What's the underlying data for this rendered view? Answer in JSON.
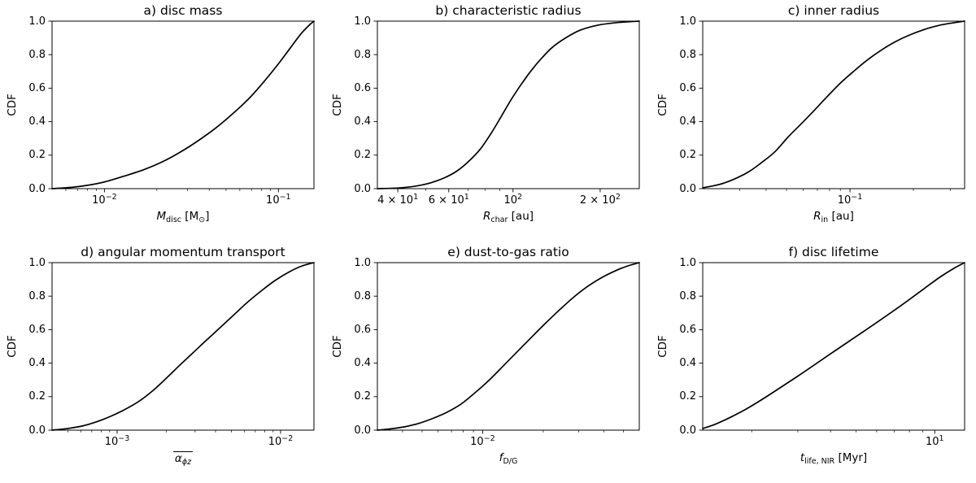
{
  "figure": {
    "bg": "#ffffff",
    "line_color": "#000000",
    "axis_color": "#000000",
    "ylabel": "CDF",
    "yticks": [
      {
        "v": 0.0,
        "label": "0.0"
      },
      {
        "v": 0.2,
        "label": "0.2"
      },
      {
        "v": 0.4,
        "label": "0.4"
      },
      {
        "v": 0.6,
        "label": "0.6"
      },
      {
        "v": 0.8,
        "label": "0.8"
      },
      {
        "v": 1.0,
        "label": "1.0"
      }
    ]
  },
  "chart_data": [
    {
      "id": "a",
      "type": "line",
      "title": "a) disc mass",
      "xscale": "log",
      "xlim": [
        0.005,
        0.16
      ],
      "ylim": [
        0,
        1
      ],
      "xticks": [
        {
          "v": 0.01,
          "pre": "",
          "exp": "−2"
        },
        {
          "v": 0.1,
          "pre": "",
          "exp": "−1"
        }
      ],
      "xlabel_parts": [
        {
          "s": "M",
          "style": "i"
        },
        {
          "s": "disc",
          "style": "sub"
        },
        {
          "s": " [M",
          "style": "n"
        },
        {
          "s": "⊙",
          "style": "sub"
        },
        {
          "s": "]",
          "style": "n"
        }
      ],
      "xlabel_overline": false,
      "points": [
        [
          0.005,
          0
        ],
        [
          0.0065,
          0.008
        ],
        [
          0.008,
          0.02
        ],
        [
          0.01,
          0.04
        ],
        [
          0.013,
          0.075
        ],
        [
          0.017,
          0.115
        ],
        [
          0.022,
          0.165
        ],
        [
          0.028,
          0.225
        ],
        [
          0.035,
          0.29
        ],
        [
          0.044,
          0.365
        ],
        [
          0.055,
          0.45
        ],
        [
          0.068,
          0.54
        ],
        [
          0.082,
          0.635
        ],
        [
          0.1,
          0.745
        ],
        [
          0.118,
          0.845
        ],
        [
          0.135,
          0.925
        ],
        [
          0.15,
          0.975
        ],
        [
          0.16,
          1.0
        ]
      ]
    },
    {
      "id": "b",
      "type": "line",
      "title": "b) characteristic radius",
      "xscale": "log",
      "xlim": [
        34,
        273
      ],
      "ylim": [
        0,
        1
      ],
      "xticks": [
        {
          "v": 40,
          "pre": "4 × ",
          "exp": "1"
        },
        {
          "v": 60,
          "pre": "6 × ",
          "exp": "1"
        },
        {
          "v": 100,
          "pre": "",
          "exp": "2"
        },
        {
          "v": 200,
          "pre": "2 × ",
          "exp": "2"
        }
      ],
      "xlabel_parts": [
        {
          "s": "R",
          "style": "i"
        },
        {
          "s": "char",
          "style": "sub"
        },
        {
          "s": " [au]",
          "style": "n"
        }
      ],
      "xlabel_overline": false,
      "points": [
        [
          34,
          0
        ],
        [
          40,
          0.004
        ],
        [
          46,
          0.015
        ],
        [
          52,
          0.035
        ],
        [
          58,
          0.065
        ],
        [
          64,
          0.105
        ],
        [
          70,
          0.16
        ],
        [
          77,
          0.235
        ],
        [
          84,
          0.33
        ],
        [
          91,
          0.43
        ],
        [
          98,
          0.525
        ],
        [
          106,
          0.615
        ],
        [
          115,
          0.7
        ],
        [
          125,
          0.775
        ],
        [
          137,
          0.845
        ],
        [
          152,
          0.9
        ],
        [
          170,
          0.945
        ],
        [
          195,
          0.975
        ],
        [
          225,
          0.99
        ],
        [
          250,
          0.996
        ],
        [
          273,
          1.0
        ]
      ]
    },
    {
      "id": "c",
      "type": "line",
      "title": "c) inner radius",
      "xscale": "log",
      "xlim": [
        0.02,
        0.35
      ],
      "ylim": [
        0,
        1
      ],
      "xticks": [
        {
          "v": 0.1,
          "pre": "",
          "exp": "−1"
        }
      ],
      "xlabel_parts": [
        {
          "s": "R",
          "style": "i"
        },
        {
          "s": "in",
          "style": "sub"
        },
        {
          "s": " [au]",
          "style": "n"
        }
      ],
      "xlabel_overline": false,
      "points": [
        [
          0.02,
          0.005
        ],
        [
          0.024,
          0.025
        ],
        [
          0.028,
          0.055
        ],
        [
          0.033,
          0.1
        ],
        [
          0.038,
          0.155
        ],
        [
          0.044,
          0.22
        ],
        [
          0.051,
          0.31
        ],
        [
          0.059,
          0.39
        ],
        [
          0.068,
          0.47
        ],
        [
          0.078,
          0.55
        ],
        [
          0.09,
          0.63
        ],
        [
          0.104,
          0.7
        ],
        [
          0.12,
          0.765
        ],
        [
          0.14,
          0.825
        ],
        [
          0.163,
          0.875
        ],
        [
          0.19,
          0.915
        ],
        [
          0.225,
          0.95
        ],
        [
          0.265,
          0.975
        ],
        [
          0.31,
          0.99
        ],
        [
          0.35,
          1.0
        ]
      ]
    },
    {
      "id": "d",
      "type": "line",
      "title": "d) angular momentum transport",
      "xscale": "log",
      "xlim": [
        0.0004,
        0.016
      ],
      "ylim": [
        0,
        1
      ],
      "xticks": [
        {
          "v": 0.001,
          "pre": "",
          "exp": "−3"
        },
        {
          "v": 0.01,
          "pre": "",
          "exp": "−2"
        }
      ],
      "xlabel_parts": [
        {
          "s": "α",
          "style": "i"
        },
        {
          "s": "ϕz",
          "style": "subi"
        }
      ],
      "xlabel_overline": true,
      "points": [
        [
          0.0004,
          0
        ],
        [
          0.0005,
          0.01
        ],
        [
          0.00062,
          0.026
        ],
        [
          0.00075,
          0.05
        ],
        [
          0.0009,
          0.08
        ],
        [
          0.0011,
          0.12
        ],
        [
          0.00135,
          0.17
        ],
        [
          0.00165,
          0.235
        ],
        [
          0.002,
          0.31
        ],
        [
          0.0024,
          0.385
        ],
        [
          0.0029,
          0.46
        ],
        [
          0.0035,
          0.535
        ],
        [
          0.0043,
          0.615
        ],
        [
          0.0052,
          0.69
        ],
        [
          0.0063,
          0.765
        ],
        [
          0.0077,
          0.835
        ],
        [
          0.0093,
          0.895
        ],
        [
          0.0113,
          0.945
        ],
        [
          0.0135,
          0.98
        ],
        [
          0.016,
          1.0
        ]
      ]
    },
    {
      "id": "e",
      "type": "line",
      "title": "e) dust-to-gas ratio",
      "xscale": "log",
      "xlim": [
        0.003,
        0.06
      ],
      "ylim": [
        0,
        1
      ],
      "xticks": [
        {
          "v": 0.01,
          "pre": "",
          "exp": "−2"
        }
      ],
      "xlabel_parts": [
        {
          "s": "f",
          "style": "i"
        },
        {
          "s": "D/G",
          "style": "sub"
        }
      ],
      "xlabel_overline": false,
      "points": [
        [
          0.003,
          0
        ],
        [
          0.0035,
          0.008
        ],
        [
          0.0041,
          0.02
        ],
        [
          0.0048,
          0.04
        ],
        [
          0.0056,
          0.068
        ],
        [
          0.0066,
          0.105
        ],
        [
          0.0078,
          0.155
        ],
        [
          0.0092,
          0.225
        ],
        [
          0.0108,
          0.3
        ],
        [
          0.0127,
          0.385
        ],
        [
          0.0149,
          0.47
        ],
        [
          0.0175,
          0.555
        ],
        [
          0.0206,
          0.64
        ],
        [
          0.0242,
          0.72
        ],
        [
          0.0284,
          0.795
        ],
        [
          0.0334,
          0.86
        ],
        [
          0.0392,
          0.912
        ],
        [
          0.046,
          0.953
        ],
        [
          0.0525,
          0.98
        ],
        [
          0.06,
          1.0
        ]
      ]
    },
    {
      "id": "f",
      "type": "line",
      "title": "f) disc lifetime",
      "xscale": "log",
      "xlim": [
        1.3,
        13
      ],
      "ylim": [
        0,
        1
      ],
      "xticks": [
        {
          "v": 10,
          "pre": "",
          "exp": "1"
        }
      ],
      "xlabel_parts": [
        {
          "s": "t",
          "style": "i"
        },
        {
          "s": "life, NIR",
          "style": "sub"
        },
        {
          "s": " [Myr]",
          "style": "n"
        }
      ],
      "xlabel_overline": false,
      "points": [
        [
          1.3,
          0.01
        ],
        [
          1.45,
          0.035
        ],
        [
          1.65,
          0.075
        ],
        [
          1.9,
          0.125
        ],
        [
          2.2,
          0.185
        ],
        [
          2.55,
          0.25
        ],
        [
          2.95,
          0.315
        ],
        [
          3.4,
          0.38
        ],
        [
          3.95,
          0.45
        ],
        [
          4.6,
          0.52
        ],
        [
          5.3,
          0.585
        ],
        [
          6.1,
          0.65
        ],
        [
          7.0,
          0.715
        ],
        [
          8.0,
          0.78
        ],
        [
          9.2,
          0.85
        ],
        [
          10.5,
          0.915
        ],
        [
          11.8,
          0.965
        ],
        [
          13,
          1.0
        ]
      ]
    }
  ]
}
